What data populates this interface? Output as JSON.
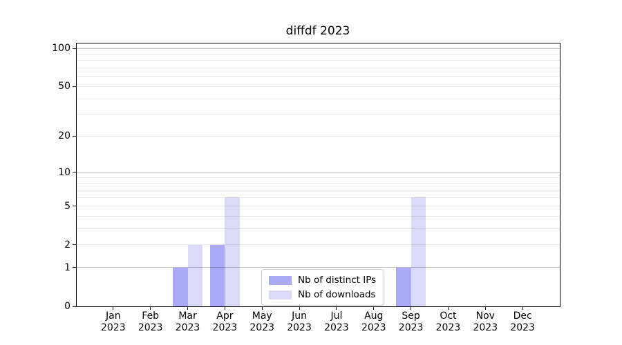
{
  "title": "diffdf 2023",
  "chart_data": {
    "type": "bar",
    "title": "diffdf 2023",
    "categories": [
      "Jan 2023",
      "Feb 2023",
      "Mar 2023",
      "Apr 2023",
      "May 2023",
      "Jun 2023",
      "Jul 2023",
      "Aug 2023",
      "Sep 2023",
      "Oct 2023",
      "Nov 2023",
      "Dec 2023"
    ],
    "series": [
      {
        "name": "Nb of distinct IPs",
        "color": "#a9a9f7",
        "values": [
          0,
          0,
          1,
          2,
          0,
          0,
          0,
          0,
          1,
          0,
          0,
          0
        ]
      },
      {
        "name": "Nb of downloads",
        "color": "#dbdbf9",
        "values": [
          0,
          0,
          2,
          6,
          0,
          0,
          0,
          0,
          6,
          0,
          0,
          0
        ]
      }
    ],
    "yscale": "log1p",
    "ylim": [
      0,
      111
    ],
    "yticks": [
      0,
      1,
      2,
      5,
      10,
      20,
      50,
      100
    ],
    "ytick_labels": [
      "0",
      "1",
      "2",
      "5",
      "10",
      "20",
      "50",
      "100"
    ],
    "ygrid_major": [
      1,
      10,
      100
    ],
    "grid": true,
    "legend_position": "lower center",
    "colors": {
      "major_grid": "#c6c6c6",
      "minor_grid": "#ebebeb",
      "axis": "#000000",
      "background": "#ffffff"
    }
  }
}
